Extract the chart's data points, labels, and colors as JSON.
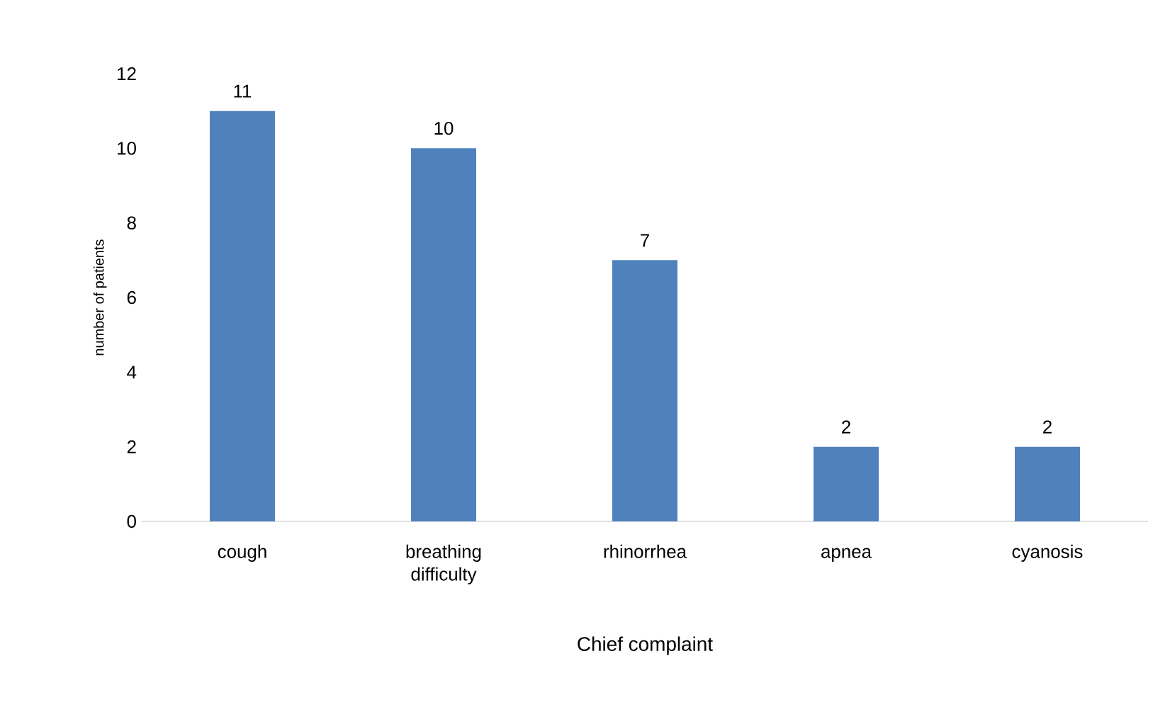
{
  "chart_data": {
    "type": "bar",
    "xlabel": "Chief complaint",
    "ylabel": "number of patients",
    "categories": [
      "cough",
      "breathing difficulty",
      "rhinorrhea",
      "apnea",
      "cyanosis"
    ],
    "values": [
      11,
      10,
      7,
      2,
      2
    ],
    "color": "#4f81bd",
    "ylim": [
      0,
      12
    ],
    "yticks": [
      0,
      2,
      4,
      6,
      8,
      10,
      12
    ],
    "data_labels": true
  }
}
